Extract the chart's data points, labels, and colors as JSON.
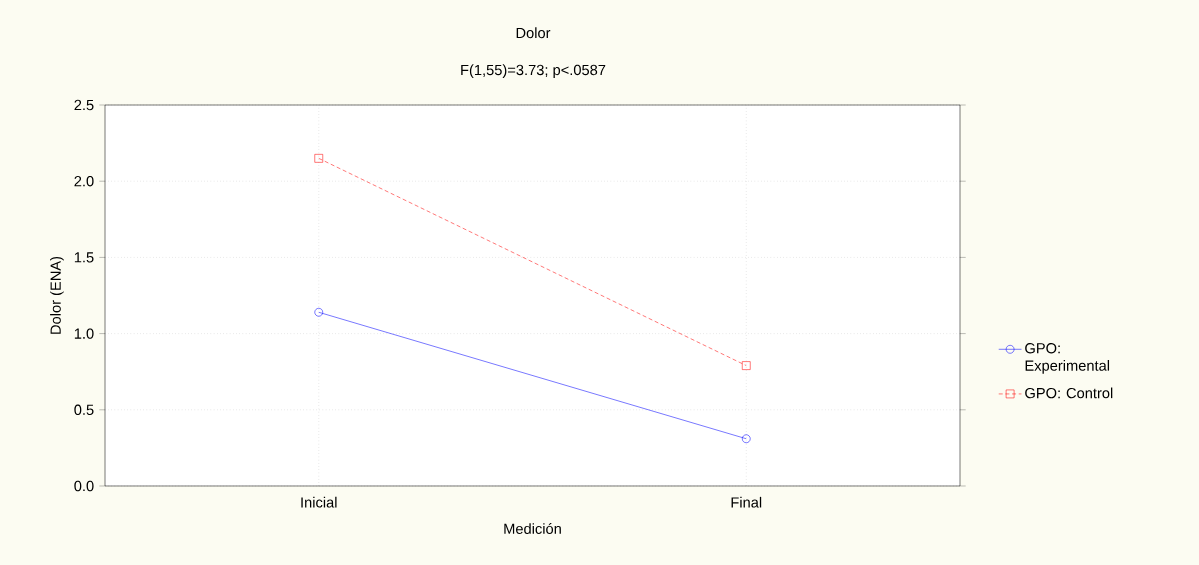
{
  "chart_data": {
    "type": "line",
    "title": "Dolor",
    "subtitle": "F(1,55)=3.73; p<.0587",
    "xlabel": "Medición",
    "ylabel": "Dolor (ENA)",
    "categories": [
      "Inicial",
      "Final"
    ],
    "series": [
      {
        "name": "GPO: Experimental",
        "color": "#0000ff",
        "values": [
          1.14,
          0.31
        ],
        "marker": "circle",
        "line_style": "solid"
      },
      {
        "name": "GPO: Control",
        "color": "#ff0000",
        "values": [
          2.15,
          0.79
        ],
        "marker": "square",
        "line_style": "dashed"
      }
    ],
    "ylim": [
      0,
      2.5
    ],
    "yticks": [
      {
        "value": 0,
        "label": "0.0"
      },
      {
        "value": 0.5,
        "label": "0.5"
      },
      {
        "value": 1,
        "label": "1.0"
      },
      {
        "value": 1.5,
        "label": "1.5"
      },
      {
        "value": 2,
        "label": "2.0"
      },
      {
        "value": 2.5,
        "label": "2.5"
      }
    ],
    "grid": true,
    "legend": "right"
  }
}
